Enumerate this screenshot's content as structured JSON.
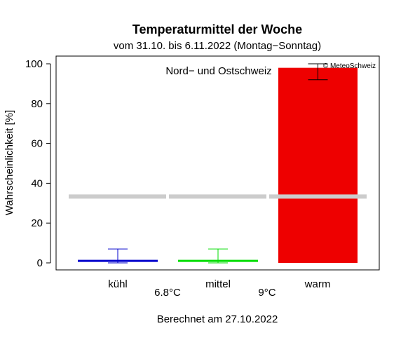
{
  "chart_data": {
    "type": "bar",
    "title": "Temperaturmittel der Woche",
    "subtitle": "vom 31.10. bis 6.11.2022 (Montag−Sonntag)",
    "region": "Nord− und Ostschweiz",
    "copyright": "© MeteoSchweiz",
    "ylabel": "Wahrscheinlichkeit [%]",
    "xlabel": "Berechnet am 27.10.2022",
    "ylim": [
      0,
      100
    ],
    "yticks": [
      "0",
      "20",
      "40",
      "60",
      "80",
      "100"
    ],
    "categories": [
      "kühl",
      "mittel",
      "warm"
    ],
    "values": [
      1,
      1,
      98
    ],
    "error_low": [
      0,
      0,
      92
    ],
    "error_high": [
      7,
      7,
      100
    ],
    "climatology": 33.3,
    "thresholds": [
      "6.8°C",
      "9°C"
    ],
    "colors": {
      "kühl": "#0000cc",
      "mittel": "#00dd00",
      "warm": "#ee0000",
      "climatology": "#cccccc"
    }
  }
}
